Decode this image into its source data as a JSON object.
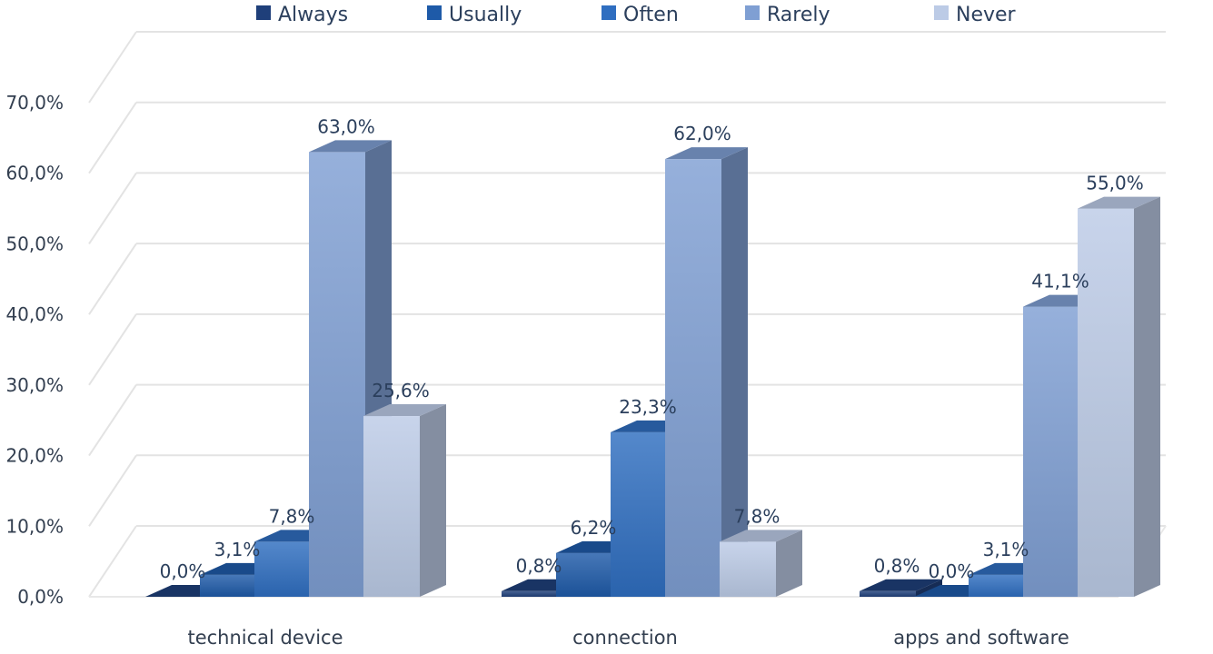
{
  "chart_data": {
    "type": "bar",
    "categories": [
      "technical device",
      "connection",
      "apps and software"
    ],
    "series": [
      {
        "name": "Always",
        "values": [
          0.0,
          0.8,
          0.8
        ],
        "labels": [
          "0,0%",
          "0,8%",
          "0,8%"
        ],
        "color": "#1f3f7a"
      },
      {
        "name": "Usually",
        "values": [
          3.1,
          6.2,
          0.0
        ],
        "labels": [
          "3,1%",
          "6,2%",
          "0,0%"
        ],
        "color": "#1e5aa8"
      },
      {
        "name": "Often",
        "values": [
          7.8,
          23.3,
          3.1
        ],
        "labels": [
          "7,8%",
          "23,3%",
          "3,1%"
        ],
        "color": "#2f6ec0"
      },
      {
        "name": "Rarely",
        "values": [
          63.0,
          62.0,
          41.1
        ],
        "labels": [
          "63,0%",
          "62,0%",
          "41,1%"
        ],
        "color": "#7f9fd3"
      },
      {
        "name": "Never",
        "values": [
          25.6,
          7.8,
          55.0
        ],
        "labels": [
          "25,6%",
          "7,8%",
          "55,0%"
        ],
        "color": "#bccbe6"
      }
    ],
    "y_ticks": [
      "0,0%",
      "10,0%",
      "20,0%",
      "30,0%",
      "40,0%",
      "50,0%",
      "60,0%",
      "70,0%"
    ],
    "ylim": [
      0,
      70
    ],
    "grid": true,
    "legend_position": "top",
    "style": "3d-clustered-column"
  }
}
